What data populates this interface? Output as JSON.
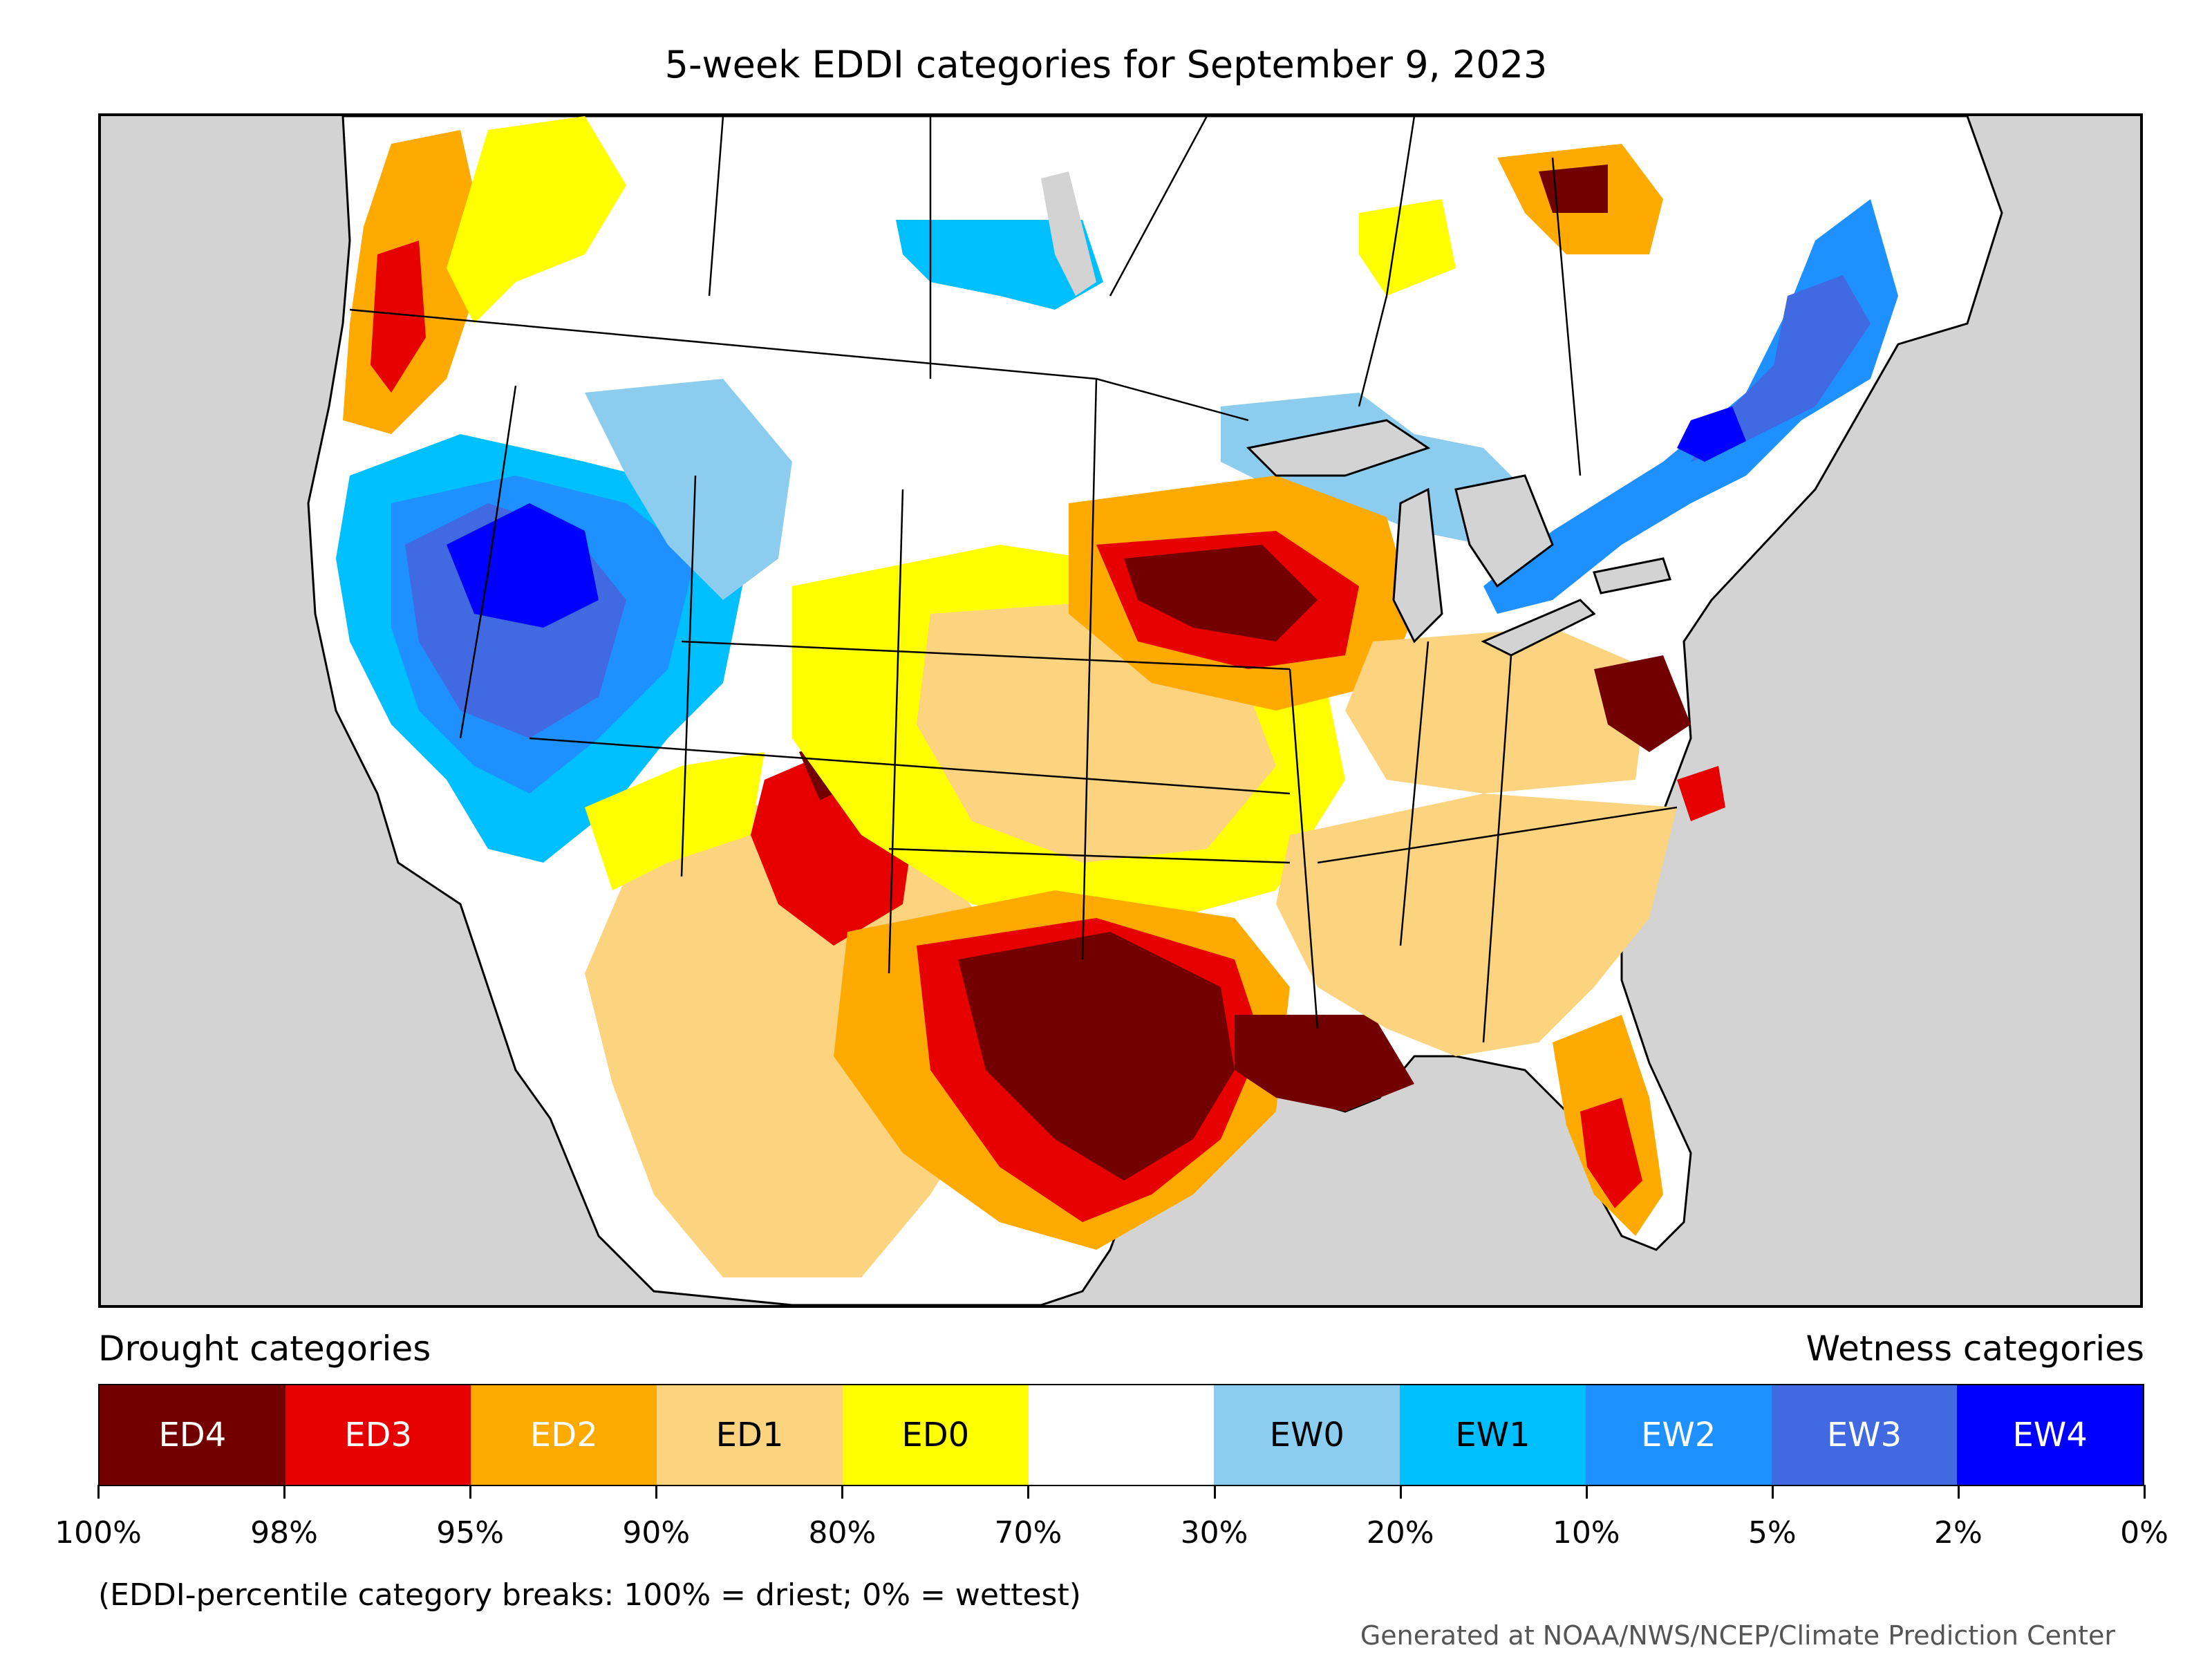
{
  "title": "5-week EDDI categories for September 9, 2023",
  "legend": {
    "drought_heading": "Drought categories",
    "wetness_heading": "Wetness categories",
    "categories": [
      {
        "label": "ED4",
        "color": "#730000",
        "text_color": "#ffffff"
      },
      {
        "label": "ED3",
        "color": "#e60000",
        "text_color": "#ffffff"
      },
      {
        "label": "ED2",
        "color": "#ffaa00",
        "text_color": "#ffffff"
      },
      {
        "label": "ED1",
        "color": "#fcd37f",
        "text_color": "#000000"
      },
      {
        "label": "ED0",
        "color": "#ffff00",
        "text_color": "#000000"
      },
      {
        "label": "",
        "color": "#ffffff",
        "text_color": "#000000"
      },
      {
        "label": "EW0",
        "color": "#8ccdef",
        "text_color": "#000000"
      },
      {
        "label": "EW1",
        "color": "#00bfff",
        "text_color": "#000000"
      },
      {
        "label": "EW2",
        "color": "#1e90ff",
        "text_color": "#ffffff"
      },
      {
        "label": "EW3",
        "color": "#4169e1",
        "text_color": "#ffffff"
      },
      {
        "label": "EW4",
        "color": "#0000ff",
        "text_color": "#ffffff"
      }
    ],
    "ticks": [
      "100%",
      "98%",
      "95%",
      "90%",
      "80%",
      "70%",
      "30%",
      "20%",
      "10%",
      "5%",
      "2%",
      "0%"
    ]
  },
  "footnote": "(EDDI-percentile category breaks: 100% = driest; 0% = wettest)",
  "credit": "Generated at NOAA/NWS/NCEP/Climate Prediction Center",
  "map": {
    "background_color": "#d3d3d3",
    "regions": [
      {
        "name": "pacific-northwest-coast",
        "category": "ED3"
      },
      {
        "name": "great-basin-northwest",
        "category": "EW4"
      },
      {
        "name": "nevada-utah",
        "category": "EW2"
      },
      {
        "name": "northern-rockies",
        "category": "EW0"
      },
      {
        "name": "southern-plains-texas",
        "category": "ED4"
      },
      {
        "name": "upper-midwest-iowa-wisconsin",
        "category": "ED4"
      },
      {
        "name": "virginia",
        "category": "ED4"
      },
      {
        "name": "new-mexico-colorado",
        "category": "ED3"
      },
      {
        "name": "southeast",
        "category": "ED1"
      },
      {
        "name": "florida-gulf-coast",
        "category": "ED2"
      },
      {
        "name": "northeast-maine-quebec",
        "category": "EW3"
      },
      {
        "name": "ontario-central",
        "category": "EW0"
      },
      {
        "name": "southwest-arizona",
        "category": "ED1"
      },
      {
        "name": "kansas-oklahoma",
        "category": "ED0"
      }
    ]
  }
}
